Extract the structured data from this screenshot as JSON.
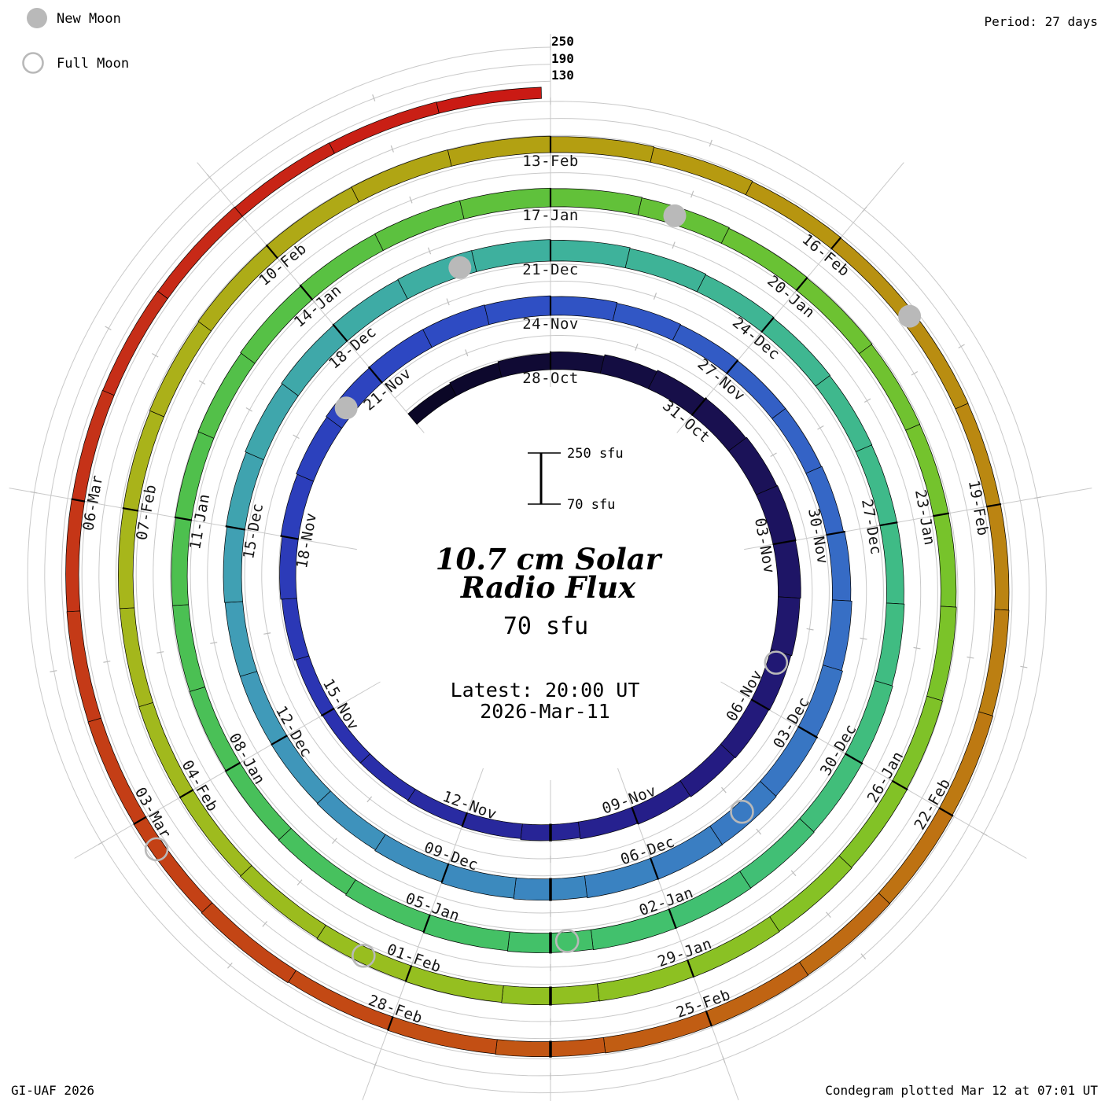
{
  "legend": {
    "new_moon": "New Moon",
    "full_moon": "Full Moon"
  },
  "header": {
    "period": "Period: 27 days"
  },
  "footer": {
    "credit": "GI-UAF 2026",
    "plotted": "Condegram plotted Mar 12 at 07:01 UT"
  },
  "center": {
    "title_line1": "10.7 cm Solar",
    "title_line2": "Radio Flux",
    "current_value": "70 sfu",
    "latest_line1": "Latest: 20:00 UT",
    "latest_line2": "2026-Mar-11",
    "accent_color": "#f24743"
  },
  "scale_bar": {
    "top_label": "250 sfu",
    "bottom_label": "70 sfu"
  },
  "radial_axis": {
    "tick_labels": [
      "250",
      "190",
      "130"
    ]
  },
  "chart_data": {
    "type": "bar",
    "layout": "polar-spiral condegram: one full rotation = 27 days, time runs clockwise starting at top; bar height = daily flux above the 70 sfu baseline of each winding",
    "title": "10.7 cm Solar Radio Flux",
    "units": "sfu",
    "period_days": 27,
    "baseline_sfu": 70,
    "radial_tick_levels_sfu": [
      130,
      190,
      250
    ],
    "angle_reference_date": "2025-10-28",
    "start_date": "2025-10-25",
    "end_date": "2026-03-12",
    "latest_observation": {
      "date": "2026-03-11",
      "time_ut": "20:00",
      "flux_sfu": 70
    },
    "date_labels": [
      "28-Oct",
      "31-Oct",
      "03-Nov",
      "06-Nov",
      "09-Nov",
      "12-Nov",
      "15-Nov",
      "18-Nov",
      "21-Nov",
      "24-Nov",
      "27-Nov",
      "30-Nov",
      "03-Dec",
      "06-Dec",
      "09-Dec",
      "12-Dec",
      "15-Dec",
      "18-Dec",
      "21-Dec",
      "24-Dec",
      "27-Dec",
      "30-Dec",
      "02-Jan",
      "05-Jan",
      "08-Jan",
      "11-Jan",
      "14-Jan",
      "17-Jan",
      "20-Jan",
      "23-Jan",
      "26-Jan",
      "29-Jan",
      "01-Feb",
      "04-Feb",
      "07-Feb",
      "10-Feb",
      "13-Feb",
      "16-Feb",
      "19-Feb",
      "22-Feb",
      "25-Feb",
      "28-Feb",
      "03-Mar",
      "06-Mar"
    ],
    "values_start_offset_days": -3,
    "daily_flux_estimates_sfu": [
      118,
      122,
      127,
      132,
      138,
      143,
      147,
      150,
      152,
      150,
      147,
      144,
      141,
      138,
      134,
      130,
      126,
      122,
      119,
      117,
      117,
      119,
      123,
      127,
      132,
      136,
      139,
      141,
      141,
      139,
      136,
      133,
      131,
      129,
      129,
      131,
      135,
      139,
      143,
      146,
      148,
      149,
      148,
      145,
      142,
      138,
      135,
      133,
      132,
      132,
      134,
      137,
      141,
      144,
      146,
      147,
      146,
      143,
      140,
      137,
      134,
      132,
      131,
      131,
      133,
      136,
      138,
      140,
      141,
      141,
      139,
      137,
      134,
      131,
      129,
      127,
      126,
      126,
      128,
      130,
      133,
      135,
      136,
      136,
      134,
      132,
      129,
      127,
      125,
      124,
      124,
      126,
      128,
      130,
      132,
      133,
      132,
      131,
      129,
      127,
      125,
      123,
      122,
      121,
      122,
      123,
      125,
      127,
      128,
      129,
      128,
      126,
      124,
      122,
      120,
      119,
      118,
      119,
      120,
      122,
      124,
      125,
      126,
      125,
      123,
      121,
      119,
      122,
      120,
      118,
      117,
      116,
      115,
      114,
      113,
      112,
      111,
      110,
      70
    ],
    "new_moon_dates": [
      "2025-11-20",
      "2025-12-20",
      "2026-01-18",
      "2026-02-17"
    ],
    "full_moon_dates": [
      "2025-11-05",
      "2025-12-04",
      "2026-01-03",
      "2026-02-01",
      "2026-03-02"
    ],
    "new_moon_t_days": [
      23.3,
      52.8,
      82.4,
      112.0
    ],
    "full_moon_t_days": [
      8.2,
      37.5,
      67.3,
      96.5,
      125.7
    ],
    "color_stops": [
      [
        -3,
        "#0a0622"
      ],
      [
        4,
        "#1a1154"
      ],
      [
        11,
        "#251c86"
      ],
      [
        18,
        "#2b33b2"
      ],
      [
        25,
        "#2d49c3"
      ],
      [
        32,
        "#3565c6"
      ],
      [
        39,
        "#3a80c2"
      ],
      [
        46,
        "#409cb8"
      ],
      [
        53,
        "#3eafa0"
      ],
      [
        60,
        "#3fbb88"
      ],
      [
        67,
        "#42c16b"
      ],
      [
        74,
        "#4cc051"
      ],
      [
        81,
        "#60c13a"
      ],
      [
        88,
        "#79c32a"
      ],
      [
        95,
        "#93c020"
      ],
      [
        102,
        "#a8b51b"
      ],
      [
        109,
        "#b59c10"
      ],
      [
        116,
        "#bc7d12"
      ],
      [
        123,
        "#c34b14"
      ],
      [
        130,
        "#c53018"
      ],
      [
        136,
        "#cc1212"
      ]
    ],
    "grid_color": "#c9c9c9",
    "moon_marker_color": "#b9b9b9",
    "legend_position": "top-left",
    "grid": true
  }
}
